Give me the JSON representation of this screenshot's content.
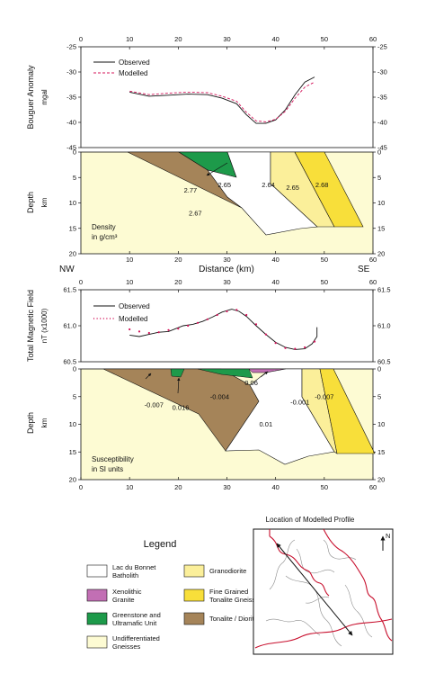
{
  "colors": {
    "undifferentiated": "#fdfbd3",
    "tonalite": "#a58459",
    "greenstone": "#1d9a4a",
    "granite": "#c26fb4",
    "granodiorite": "#fbef9a",
    "gneiss": "#f8df3a",
    "batholith": "#ffffff",
    "observed": "#111111",
    "modelled": "#d4145a",
    "map_outline": "#c8102e"
  },
  "chart_data": [
    {
      "type": "line",
      "ylabel": "Bouguer Anomaly",
      "yunit": "mgal",
      "xlim": [
        0,
        60
      ],
      "ylim": [
        -45,
        -25
      ],
      "xticks": [
        "0",
        "10",
        "20",
        "30",
        "40",
        "50",
        "60"
      ],
      "yticks": [
        "-25",
        "-30",
        "-35",
        "-40",
        "-45"
      ],
      "legend": [
        "Observed",
        "Modelled"
      ],
      "series": [
        {
          "name": "Observed",
          "style": "solid",
          "x": [
            10,
            14,
            18,
            22,
            26,
            29,
            32,
            34,
            36,
            38,
            40,
            42,
            44,
            46,
            48
          ],
          "y": [
            -34,
            -34.8,
            -34.6,
            -34.4,
            -34.5,
            -35.2,
            -36.3,
            -38.5,
            -40.2,
            -40.2,
            -39.5,
            -37.5,
            -34.5,
            -32,
            -31
          ]
        },
        {
          "name": "Modelled",
          "style": "dashed",
          "x": [
            10,
            14,
            18,
            22,
            26,
            29,
            32,
            34,
            36,
            38,
            40,
            42,
            44,
            46,
            48
          ],
          "y": [
            -33.8,
            -34.5,
            -34.2,
            -34,
            -34.1,
            -34.8,
            -35.8,
            -38,
            -39.7,
            -39.9,
            -39.4,
            -37.8,
            -35.2,
            -33,
            -32
          ]
        }
      ]
    },
    {
      "type": "area",
      "ylabel": "Depth",
      "yunit": "km",
      "xlim": [
        0,
        60
      ],
      "ylim": [
        0,
        20
      ],
      "yticks": [
        "0",
        "5",
        "10",
        "15",
        "20"
      ],
      "xticks": [
        "10",
        "20",
        "30",
        "40",
        "50",
        "60"
      ],
      "xlabel": "Distance  (km)",
      "left_label": "NW",
      "right_label": "SE",
      "caption_line1": "Density",
      "caption_line2": "in  g/cm³",
      "labels": [
        {
          "text": "2.77",
          "x": 22.5,
          "y": 7.5
        },
        {
          "text": "2.65",
          "x": 29.5,
          "y": 6.5
        },
        {
          "text": "2.64",
          "x": 38.5,
          "y": 6.5
        },
        {
          "text": "2.65",
          "x": 43.5,
          "y": 7
        },
        {
          "text": "2.68",
          "x": 49.5,
          "y": 6.5
        },
        {
          "text": "2.67",
          "x": 23.5,
          "y": 12
        }
      ]
    },
    {
      "type": "scatter",
      "ylabel": "Total Magnetic Field",
      "yunit": "nT (x1000)",
      "xlim": [
        0,
        60
      ],
      "ylim": [
        60.5,
        61.5
      ],
      "xticks": [
        "0",
        "10",
        "20",
        "30",
        "40",
        "50",
        "60"
      ],
      "yticks": [
        "61.5",
        "61.0",
        "60.5"
      ],
      "legend": [
        "Observed",
        "Modelled"
      ],
      "series": [
        {
          "name": "Observed",
          "style": "solid",
          "x": [
            10,
            12,
            14,
            16,
            18,
            19.5,
            21,
            23,
            25,
            27,
            29,
            31,
            32.5,
            34,
            36,
            38,
            40,
            42,
            44,
            46,
            47.5,
            48.5,
            48.5
          ],
          "y": [
            60.87,
            60.85,
            60.88,
            60.91,
            60.92,
            60.96,
            61.0,
            61.02,
            61.06,
            61.12,
            61.19,
            61.23,
            61.2,
            61.13,
            61.0,
            60.88,
            60.77,
            60.7,
            60.67,
            60.68,
            60.75,
            60.85,
            60.98
          ]
        },
        {
          "name": "Modelled",
          "style": "dotted",
          "x": [
            10,
            12,
            14,
            16,
            18,
            20,
            22,
            24,
            26,
            28,
            30,
            32,
            34,
            36,
            38,
            40,
            42,
            44,
            46,
            48
          ],
          "y": [
            60.95,
            60.92,
            60.9,
            60.91,
            60.94,
            60.96,
            61.0,
            61.04,
            61.09,
            61.15,
            61.2,
            61.22,
            61.15,
            61.02,
            60.88,
            60.76,
            60.69,
            60.68,
            60.7,
            60.78
          ]
        }
      ]
    },
    {
      "type": "area",
      "ylabel": "Depth",
      "yunit": "km",
      "xlim": [
        0,
        60
      ],
      "ylim": [
        0,
        20
      ],
      "yticks": [
        "0",
        "5",
        "10",
        "15",
        "20"
      ],
      "xticks": [
        "0",
        "10",
        "20",
        "30",
        "40",
        "50",
        "60"
      ],
      "caption_line1": "Susceptibility",
      "caption_line2": "in  SI  units",
      "labels": [
        {
          "text": "-0.007",
          "x": 15,
          "y": 6.5
        },
        {
          "text": "0.016",
          "x": 20.5,
          "y": 7
        },
        {
          "text": "-0.004",
          "x": 28.5,
          "y": 5
        },
        {
          "text": "0.06",
          "x": 35,
          "y": 2.5
        },
        {
          "text": "0.01",
          "x": 38,
          "y": 10
        },
        {
          "text": "-0.001",
          "x": 45,
          "y": 6
        },
        {
          "text": "-0.007",
          "x": 50,
          "y": 5
        }
      ]
    }
  ],
  "legend": {
    "title": "Legend",
    "items": [
      {
        "key": "batholith",
        "line1": "Lac du Bonnet",
        "line2": "Batholith"
      },
      {
        "key": "granite",
        "line1": "Xenolithic",
        "line2": "Granite"
      },
      {
        "key": "greenstone",
        "line1": "Greenstone and",
        "line2": "Ultramafic Unit"
      },
      {
        "key": "undifferentiated",
        "line1": "Undifferentiated",
        "line2": "Gneisses"
      },
      {
        "key": "granodiorite",
        "line1": "Granodiorite",
        "line2": ""
      },
      {
        "key": "gneiss",
        "line1": "Fine Grained",
        "line2": "Tonalite Gneisses"
      },
      {
        "key": "tonalite",
        "line1": "Tonalite / Diorite",
        "line2": ""
      }
    ]
  },
  "map": {
    "title": "Location of Modelled Profile",
    "north": "N"
  }
}
